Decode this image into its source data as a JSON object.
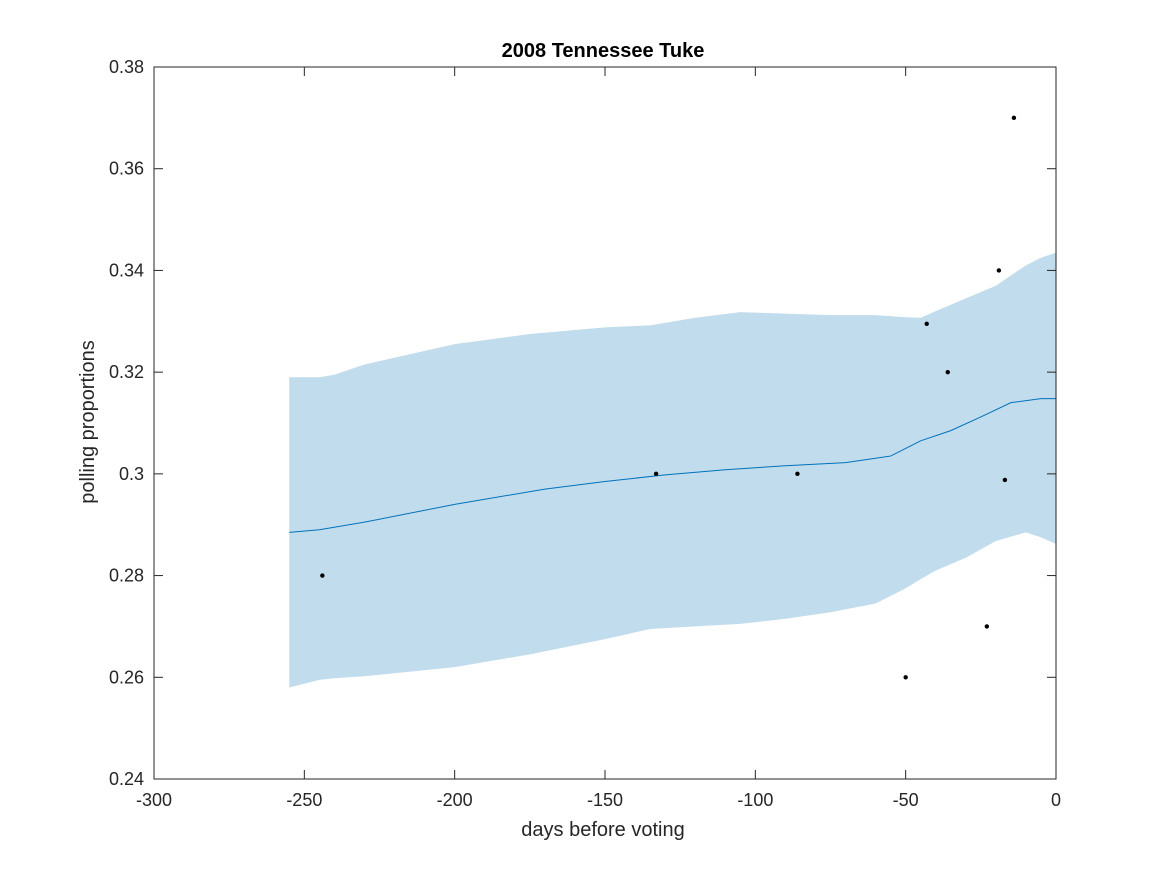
{
  "chart_data": {
    "type": "scatter",
    "title": "2008 Tennessee Tuke",
    "xlabel": "days before voting",
    "ylabel": "polling proportions",
    "xlim": [
      -300,
      0
    ],
    "ylim": [
      0.24,
      0.38
    ],
    "xticks": [
      -300,
      -250,
      -200,
      -150,
      -100,
      -50,
      0
    ],
    "xtick_labels": [
      "-300",
      "-250",
      "-200",
      "-150",
      "-100",
      "-50",
      "0"
    ],
    "yticks": [
      0.24,
      0.26,
      0.28,
      0.3,
      0.32,
      0.34,
      0.36,
      0.38
    ],
    "ytick_labels": [
      "0.24",
      "0.26",
      "0.28",
      "0.3",
      "0.32",
      "0.34",
      "0.36",
      "0.38"
    ],
    "grid": false,
    "colors": {
      "band": "#c1dcec",
      "trend": "#0072bd",
      "points": "#000000",
      "axes": "#262626"
    },
    "points": {
      "x": [
        -244,
        -133,
        -86,
        -50,
        -43,
        -36,
        -23,
        -19,
        -17,
        -14
      ],
      "y": [
        0.28,
        0.3,
        0.3,
        0.26,
        0.3295,
        0.32,
        0.27,
        0.34,
        0.2988,
        0.37
      ]
    },
    "trend": {
      "x": [
        -255,
        -245,
        -230,
        -200,
        -170,
        -150,
        -130,
        -110,
        -90,
        -70,
        -55,
        -45,
        -35,
        -25,
        -15,
        -5,
        0
      ],
      "y": [
        0.2885,
        0.289,
        0.2905,
        0.294,
        0.297,
        0.2985,
        0.2998,
        0.3008,
        0.3016,
        0.3022,
        0.3035,
        0.3065,
        0.3085,
        0.3112,
        0.314,
        0.3148,
        0.3148
      ]
    },
    "band": {
      "x": [
        -255,
        -245,
        -240,
        -230,
        -200,
        -175,
        -150,
        -135,
        -120,
        -105,
        -90,
        -75,
        -60,
        -50,
        -45,
        -40,
        -30,
        -20,
        -10,
        -5,
        0
      ],
      "upper": [
        0.319,
        0.319,
        0.3195,
        0.3215,
        0.3255,
        0.3275,
        0.3288,
        0.3292,
        0.3307,
        0.3318,
        0.3315,
        0.3312,
        0.3312,
        0.3308,
        0.3307,
        0.332,
        0.3345,
        0.337,
        0.341,
        0.3425,
        0.3435
      ],
      "lower": [
        0.258,
        0.2595,
        0.2598,
        0.2602,
        0.262,
        0.2645,
        0.2675,
        0.2695,
        0.27,
        0.2705,
        0.2715,
        0.2728,
        0.2745,
        0.2775,
        0.2793,
        0.281,
        0.2835,
        0.2868,
        0.2885,
        0.2875,
        0.2862
      ]
    }
  }
}
